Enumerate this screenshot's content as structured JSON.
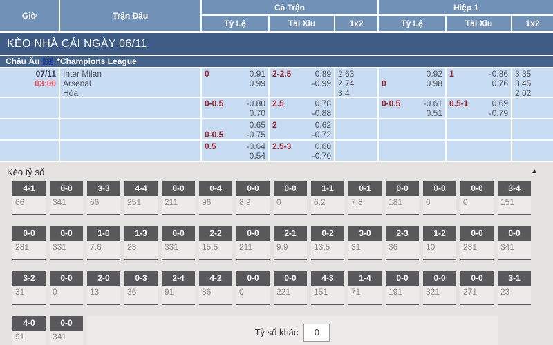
{
  "table_header": {
    "time": "Giờ",
    "match": "Trận Đấu",
    "full_match": "Cả Trận",
    "first_half": "Hiệp 1",
    "sub_columns": [
      "Tỷ Lệ",
      "Tài Xỉu",
      "1x2"
    ]
  },
  "banner_title": "KÈO NHÀ CÁI NGÀY 06/11",
  "league": {
    "region": "Châu Âu",
    "flag_icon": "eu-flag-icon",
    "name": "*Champions League"
  },
  "match": {
    "date": "07/11",
    "time": "03:00",
    "teams": [
      "Inter Milan",
      "Arsenal",
      "Hòa"
    ]
  },
  "odds_rows": [
    {
      "full_handicap": [
        [
          "0",
          "0.91"
        ],
        [
          "",
          "0.99"
        ]
      ],
      "full_total": [
        [
          "2-2.5",
          "0.89"
        ],
        [
          "",
          "-0.99"
        ]
      ],
      "full_1x2": [
        "2.63",
        "2.74",
        "3.4"
      ],
      "half_handicap": [
        [
          "",
          "0.92"
        ],
        [
          "0",
          "0.98"
        ]
      ],
      "half_total": [
        [
          "1",
          "-0.86"
        ],
        [
          "",
          "0.76"
        ]
      ],
      "half_1x2": [
        "3.35",
        "3.45",
        "2.02"
      ]
    },
    {
      "full_handicap": [
        [
          "0-0.5",
          "-0.80"
        ],
        [
          "",
          "0.70"
        ]
      ],
      "full_total": [
        [
          "2.5",
          "0.78"
        ],
        [
          "",
          "-0.88"
        ]
      ],
      "full_1x2": [],
      "half_handicap": [
        [
          "0-0.5",
          "-0.61"
        ],
        [
          "",
          "0.51"
        ]
      ],
      "half_total": [
        [
          "0.5-1",
          "0.69"
        ],
        [
          "",
          "-0.79"
        ]
      ],
      "half_1x2": []
    },
    {
      "full_handicap": [
        [
          "",
          "0.65"
        ],
        [
          "0-0.5",
          "-0.75"
        ]
      ],
      "full_total": [
        [
          "2",
          "0.62"
        ],
        [
          "",
          "-0.72"
        ]
      ],
      "full_1x2": [],
      "half_handicap": [],
      "half_total": [],
      "half_1x2": []
    },
    {
      "full_handicap": [
        [
          "0.5",
          "-0.64"
        ],
        [
          "",
          "0.54"
        ]
      ],
      "full_total": [
        [
          "2.5-3",
          "0.60"
        ],
        [
          "",
          "-0.70"
        ]
      ],
      "full_1x2": [],
      "half_handicap": [],
      "half_total": [],
      "half_1x2": []
    }
  ],
  "score_section": {
    "title": "Kèo tỷ số",
    "collapse_icon": "collapse-arrow-up",
    "rows": [
      [
        [
          "4-1",
          "66"
        ],
        [
          "0-0",
          "341"
        ],
        [
          "3-3",
          "66"
        ],
        [
          "4-4",
          "251"
        ],
        [
          "0-0",
          "211"
        ],
        [
          "0-4",
          "96"
        ],
        [
          "0-0",
          "8.9"
        ],
        [
          "0-0",
          "0"
        ],
        [
          "1-1",
          "6.2"
        ],
        [
          "0-1",
          "7.8"
        ],
        [
          "0-0",
          "181"
        ],
        [
          "0-0",
          "0"
        ],
        [
          "0-0",
          "0"
        ],
        [
          "3-4",
          "151"
        ]
      ],
      [
        [
          "0-0",
          "281"
        ],
        [
          "0-0",
          "331"
        ],
        [
          "1-0",
          "7.6"
        ],
        [
          "1-3",
          "23"
        ],
        [
          "0-0",
          "331"
        ],
        [
          "2-2",
          "15.5"
        ],
        [
          "0-0",
          "211"
        ],
        [
          "2-1",
          "9.9"
        ],
        [
          "0-2",
          "13.5"
        ],
        [
          "3-0",
          "31"
        ],
        [
          "2-3",
          "36"
        ],
        [
          "1-2",
          "10"
        ],
        [
          "0-0",
          "231"
        ],
        [
          "0-0",
          "341"
        ]
      ],
      [
        [
          "3-2",
          "31"
        ],
        [
          "0-0",
          "0"
        ],
        [
          "2-0",
          "13"
        ],
        [
          "0-3",
          "36"
        ],
        [
          "2-4",
          "91"
        ],
        [
          "4-2",
          "86"
        ],
        [
          "0-0",
          "0"
        ],
        [
          "0-0",
          "221"
        ],
        [
          "4-3",
          "151"
        ],
        [
          "1-4",
          "71"
        ],
        [
          "0-0",
          "191"
        ],
        [
          "0-0",
          "321"
        ],
        [
          "0-0",
          "271"
        ],
        [
          "3-1",
          "23"
        ]
      ],
      [
        [
          "4-0",
          "91"
        ],
        [
          "0-0",
          "341"
        ]
      ]
    ],
    "other_score_label": "Tỷ số khác",
    "other_score_value": "0"
  },
  "colors": {
    "header_blue": "#7191b7",
    "banner_blue": "#3e5c85",
    "league_blue": "#45638b",
    "cell_blue": "#c7dbf3",
    "label_red": "#9c242c",
    "time_red": "#fa5560",
    "score_bg": "#e4e3e1",
    "score_box_head": "#59595b",
    "score_box_bg": "#ecebe9"
  }
}
